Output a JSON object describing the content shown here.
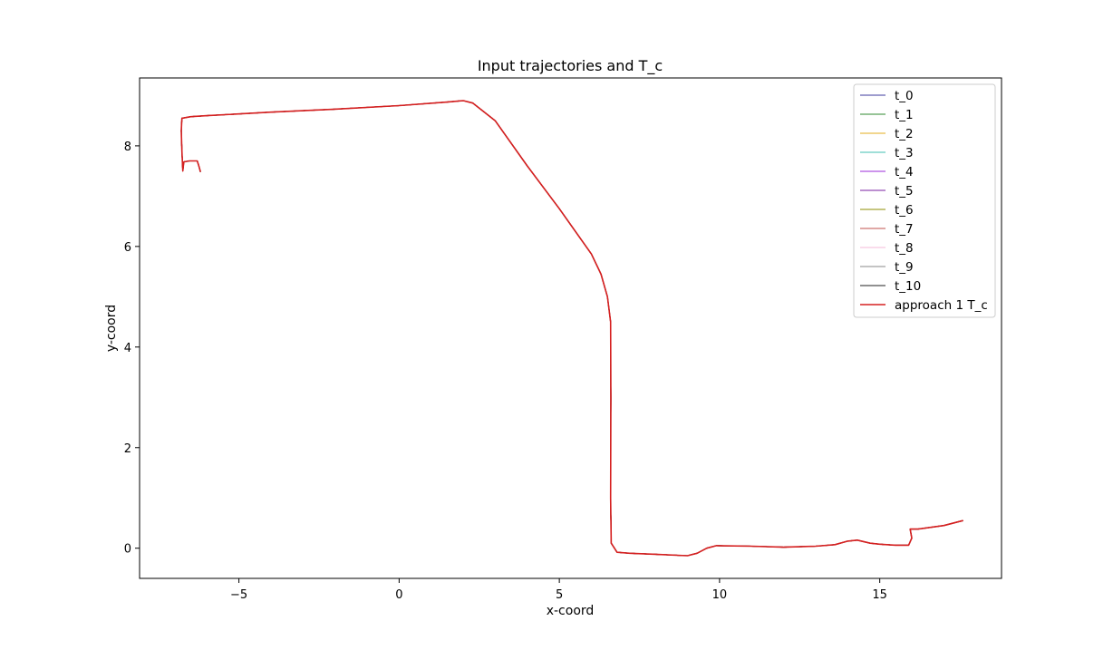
{
  "chart_data": {
    "type": "line",
    "title": "Input trajectories and T_c",
    "xlabel": "x-coord",
    "ylabel": "y-coord",
    "xlim": [
      -8.1,
      18.8
    ],
    "ylim": [
      -0.6,
      9.35
    ],
    "xticks": [
      -5,
      0,
      5,
      10,
      15
    ],
    "yticks": [
      0,
      2,
      4,
      6,
      8
    ],
    "xtick_labels": [
      "−5",
      "0",
      "5",
      "10",
      "15"
    ],
    "ytick_labels": [
      "0",
      "2",
      "4",
      "6",
      "8"
    ],
    "grid": false,
    "legend_position": "upper right",
    "main_path": [
      [
        -6.2,
        7.48
      ],
      [
        -6.25,
        7.6
      ],
      [
        -6.3,
        7.7
      ],
      [
        -6.55,
        7.7
      ],
      [
        -6.72,
        7.68
      ],
      [
        -6.75,
        7.5
      ],
      [
        -6.78,
        7.9
      ],
      [
        -6.8,
        8.3
      ],
      [
        -6.78,
        8.55
      ],
      [
        -6.5,
        8.58
      ],
      [
        -6.0,
        8.6
      ],
      [
        -4.0,
        8.67
      ],
      [
        -2.0,
        8.73
      ],
      [
        -1.7,
        8.74
      ],
      [
        0.0,
        8.8
      ],
      [
        1.5,
        8.87
      ],
      [
        2.0,
        8.9
      ],
      [
        2.3,
        8.85
      ],
      [
        3.0,
        8.5
      ],
      [
        4.0,
        7.6
      ],
      [
        5.0,
        6.75
      ],
      [
        6.0,
        5.85
      ],
      [
        6.3,
        5.45
      ],
      [
        6.5,
        5.0
      ],
      [
        6.6,
        4.5
      ],
      [
        6.61,
        3.0
      ],
      [
        6.6,
        1.0
      ],
      [
        6.62,
        0.1
      ],
      [
        6.8,
        -0.08
      ],
      [
        7.2,
        -0.1
      ],
      [
        8.0,
        -0.12
      ],
      [
        9.0,
        -0.15
      ],
      [
        9.3,
        -0.1
      ],
      [
        9.6,
        0.0
      ],
      [
        9.9,
        0.05
      ],
      [
        11.0,
        0.04
      ],
      [
        12.0,
        0.02
      ],
      [
        13.0,
        0.04
      ],
      [
        13.6,
        0.07
      ],
      [
        14.0,
        0.14
      ],
      [
        14.3,
        0.16
      ],
      [
        14.7,
        0.1
      ],
      [
        15.0,
        0.08
      ],
      [
        15.5,
        0.06
      ],
      [
        15.9,
        0.06
      ],
      [
        16.0,
        0.2
      ],
      [
        15.95,
        0.38
      ],
      [
        16.2,
        0.38
      ],
      [
        17.0,
        0.45
      ],
      [
        17.6,
        0.55
      ]
    ],
    "series": [
      {
        "name": "t_0",
        "color": "#3d3a9e",
        "start_index": 0
      },
      {
        "name": "t_1",
        "color": "#2f8a2f",
        "start_index": 0
      },
      {
        "name": "t_2",
        "color": "#e3ac1c",
        "start_index": 0
      },
      {
        "name": "t_3",
        "color": "#3fbfb0",
        "start_index": 0
      },
      {
        "name": "t_4",
        "color": "#9b2ad8",
        "start_index": 0
      },
      {
        "name": "t_5",
        "color": "#7a1fa0",
        "start_index": 0
      },
      {
        "name": "t_6",
        "color": "#8c8c00",
        "start_index": 0
      },
      {
        "name": "t_7",
        "color": "#c0504d",
        "start_index": 0
      },
      {
        "name": "t_8",
        "color": "#f4b9d8",
        "start_index": 0
      },
      {
        "name": "t_9",
        "color": "#8a8a8a",
        "start_index": 0
      },
      {
        "name": "t_10",
        "color": "#222222",
        "start_index": 0
      },
      {
        "name": "approach 1 T_c",
        "color": "#d62020",
        "start_index": 0
      }
    ]
  }
}
